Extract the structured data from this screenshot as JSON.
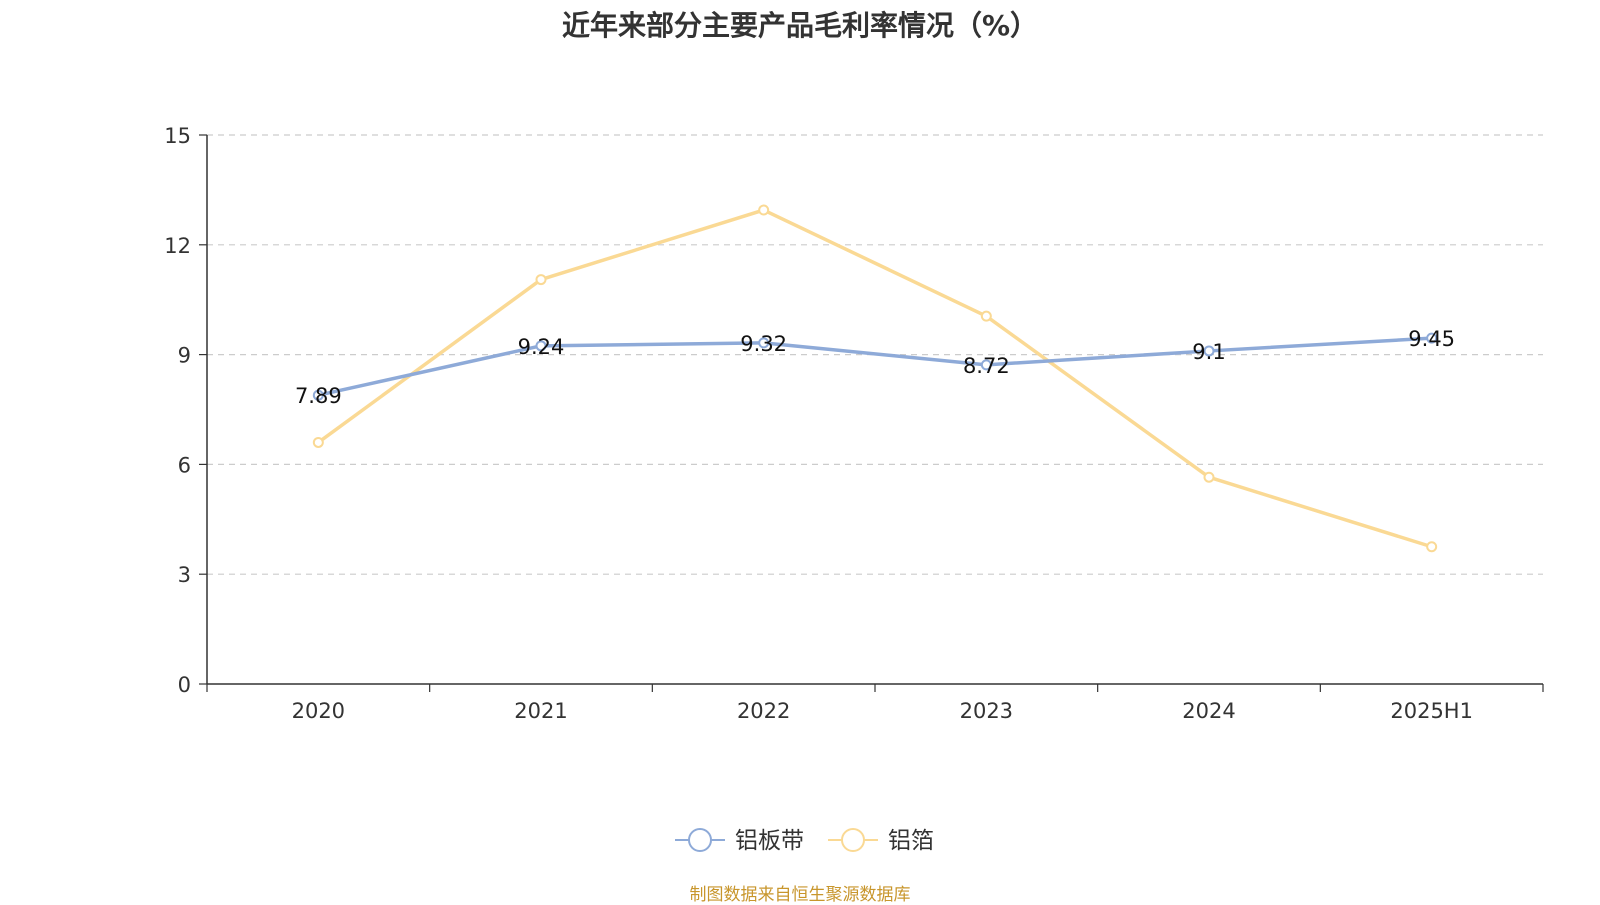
{
  "chart_data": {
    "type": "line",
    "title": "近年来部分主要产品毛利率情况（%）",
    "categories": [
      "2020",
      "2021",
      "2022",
      "2023",
      "2024",
      "2025H1"
    ],
    "ylim": [
      0,
      15
    ],
    "yticks": [
      0,
      3,
      6,
      9,
      12,
      15
    ],
    "grid": true,
    "legend_position": "bottom-center",
    "series": [
      {
        "name": "铝板带",
        "values": [
          7.89,
          9.24,
          9.32,
          8.72,
          9.1,
          9.45
        ],
        "data_labels": [
          "7.89",
          "9.24",
          "9.32",
          "8.72",
          "9.1",
          "9.45"
        ],
        "color": "#8eaad8"
      },
      {
        "name": "铝箔",
        "values": [
          6.6,
          11.05,
          12.95,
          10.05,
          5.65,
          3.75
        ],
        "color": "#fad994"
      }
    ]
  },
  "source_note": "制图数据来自恒生聚源数据库"
}
